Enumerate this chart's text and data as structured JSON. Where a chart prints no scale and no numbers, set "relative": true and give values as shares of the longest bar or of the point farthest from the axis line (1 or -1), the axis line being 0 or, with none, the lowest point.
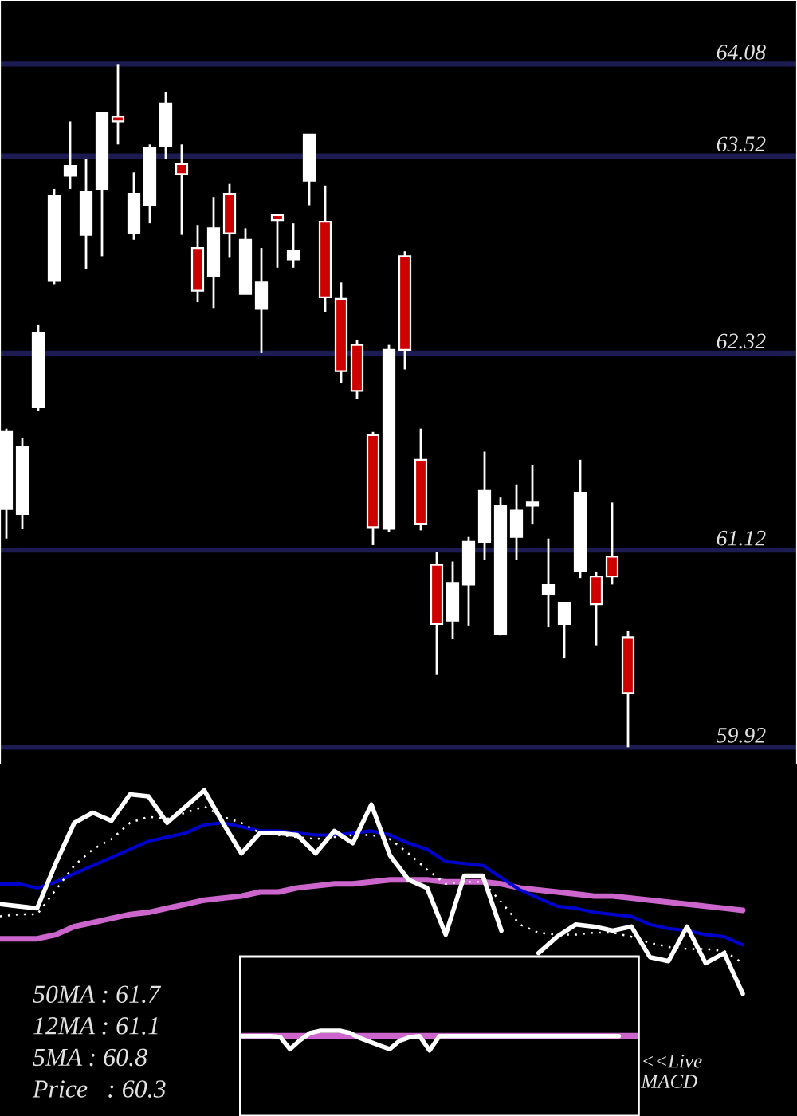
{
  "chart_data": [
    {
      "type": "candlestick",
      "categories": [
        null,
        null,
        null,
        null,
        null,
        null,
        null,
        null,
        null,
        null,
        null,
        null,
        null,
        null,
        null,
        null,
        null,
        null,
        null,
        null,
        null,
        null,
        null,
        null,
        null,
        null,
        null,
        null,
        null,
        null,
        null,
        null,
        null,
        null,
        null,
        null,
        null,
        null,
        null,
        null
      ],
      "ohlc": [
        [
          61.37,
          61.86,
          61.19,
          61.84
        ],
        [
          61.34,
          61.8,
          61.25,
          61.75
        ],
        [
          61.99,
          62.49,
          61.97,
          62.44
        ],
        [
          62.76,
          63.32,
          62.74,
          63.28
        ],
        [
          63.4,
          63.73,
          63.32,
          63.46
        ],
        [
          63.04,
          63.5,
          62.83,
          63.3
        ],
        [
          63.32,
          63.78,
          62.91,
          63.78
        ],
        [
          63.76,
          64.08,
          63.59,
          63.73
        ],
        [
          63.05,
          63.42,
          63.01,
          63.29
        ],
        [
          63.22,
          63.59,
          63.11,
          63.57
        ],
        [
          63.58,
          63.91,
          63.5,
          63.84
        ],
        [
          63.47,
          63.59,
          63.04,
          63.41
        ],
        [
          62.96,
          63.1,
          62.63,
          62.7
        ],
        [
          62.79,
          63.27,
          62.59,
          63.08
        ],
        [
          63.29,
          63.35,
          62.9,
          63.05
        ],
        [
          62.68,
          63.08,
          62.68,
          63.01
        ],
        [
          62.59,
          62.96,
          62.32,
          62.75
        ],
        [
          63.16,
          63.16,
          62.84,
          63.13
        ],
        [
          62.89,
          63.11,
          62.84,
          62.94
        ],
        [
          63.37,
          63.65,
          63.22,
          63.65
        ],
        [
          63.12,
          63.34,
          62.57,
          62.66
        ],
        [
          62.65,
          62.75,
          62.14,
          62.21
        ],
        [
          62.37,
          62.4,
          62.04,
          62.09
        ],
        [
          61.82,
          61.84,
          61.15,
          61.26
        ],
        [
          61.25,
          62.37,
          61.23,
          62.34
        ],
        [
          62.91,
          62.94,
          62.22,
          62.34
        ],
        [
          61.67,
          61.86,
          61.24,
          61.28
        ],
        [
          61.03,
          61.11,
          60.36,
          60.67
        ],
        [
          60.69,
          61.05,
          60.58,
          60.92
        ],
        [
          60.91,
          61.2,
          60.66,
          61.17
        ],
        [
          61.17,
          61.72,
          61.06,
          61.48
        ],
        [
          60.61,
          61.44,
          60.6,
          61.39
        ],
        [
          61.2,
          61.52,
          61.06,
          61.36
        ],
        [
          61.39,
          61.64,
          61.28,
          61.41
        ],
        [
          60.85,
          61.19,
          60.65,
          60.91
        ],
        [
          60.67,
          60.8,
          60.46,
          60.8
        ],
        [
          60.99,
          61.67,
          60.95,
          61.47
        ],
        [
          60.96,
          60.99,
          60.54,
          60.79
        ],
        [
          61.08,
          61.41,
          60.91,
          60.96
        ],
        [
          60.59,
          60.63,
          59.92,
          60.25
        ]
      ],
      "colors": [
        "#ffffff",
        "#ffffff",
        "#ffffff",
        "#ffffff",
        "#ffffff",
        "#ffffff",
        "#ffffff",
        "#cc0000",
        "#ffffff",
        "#ffffff",
        "#ffffff",
        "#cc0000",
        "#cc0000",
        "#ffffff",
        "#cc0000",
        "#ffffff",
        "#ffffff",
        "#cc0000",
        "#ffffff",
        "#ffffff",
        "#cc0000",
        "#cc0000",
        "#cc0000",
        "#cc0000",
        "#ffffff",
        "#cc0000",
        "#cc0000",
        "#cc0000",
        "#ffffff",
        "#ffffff",
        "#ffffff",
        "#ffffff",
        "#ffffff",
        "#ffffff",
        "#ffffff",
        "#ffffff",
        "#ffffff",
        "#cc0000",
        "#cc0000",
        "#cc0000"
      ],
      "ylim": [
        59.81,
        64.47
      ],
      "yticks": [
        59.92,
        61.12,
        62.32,
        63.52,
        64.08
      ],
      "grid": "y",
      "tick_labels": "y"
    },
    {
      "type": "line",
      "relative": true,
      "categories": [
        null,
        null,
        null,
        null,
        null,
        null,
        null,
        null,
        null,
        null,
        null,
        null,
        null,
        null,
        null,
        null,
        null,
        null,
        null,
        null,
        null,
        null,
        null,
        null,
        null,
        null,
        null,
        null,
        null,
        null,
        null,
        null,
        null,
        null,
        null,
        null,
        null,
        null,
        null,
        null,
        null
      ],
      "series": [
        {
          "color": "#cc66cc",
          "values": [
            0.27,
            0.27,
            0.27,
            0.29,
            0.33,
            0.35,
            0.37,
            0.39,
            0.4,
            0.42,
            0.44,
            0.46,
            0.47,
            0.48,
            0.5,
            0.5,
            0.52,
            0.53,
            0.54,
            0.54,
            0.55,
            0.56,
            0.56,
            0.56,
            0.55,
            0.55,
            0.55,
            0.54,
            0.52,
            0.51,
            0.5,
            0.49,
            0.48,
            0.48,
            0.47,
            0.46,
            0.45,
            0.44,
            0.43,
            0.42,
            0.41
          ]
        },
        {
          "color": "#0000cc",
          "values": [
            0.54,
            0.54,
            0.52,
            0.55,
            0.59,
            0.63,
            0.67,
            0.71,
            0.75,
            0.77,
            0.79,
            0.83,
            0.84,
            0.82,
            0.8,
            0.8,
            0.79,
            0.78,
            0.78,
            0.79,
            0.8,
            0.78,
            0.74,
            0.71,
            0.65,
            0.64,
            0.63,
            0.57,
            0.51,
            0.47,
            0.43,
            0.42,
            0.4,
            0.39,
            0.38,
            0.34,
            0.32,
            0.31,
            0.29,
            0.28,
            0.24
          ]
        },
        {
          "color": "#ffffff",
          "line_style": "dotted",
          "values": [
            0.38,
            0.39,
            0.39,
            0.51,
            0.63,
            0.71,
            0.76,
            0.84,
            0.87,
            0.86,
            0.89,
            0.92,
            0.87,
            0.84,
            0.79,
            0.78,
            0.77,
            0.76,
            0.77,
            0.78,
            0.78,
            0.76,
            0.69,
            0.61,
            0.54,
            0.55,
            0.55,
            0.45,
            0.34,
            0.3,
            0.29,
            0.29,
            0.3,
            0.3,
            0.28,
            0.25,
            0.23,
            0.22,
            0.22,
            0.21,
            0.15
          ]
        },
        {
          "color": "#ffffff",
          "values": [
            0.44,
            0.43,
            0.42,
            0.64,
            0.84,
            0.89,
            0.85,
            0.98,
            0.97,
            0.84,
            0.92,
            1,
            0.84,
            0.69,
            0.79,
            0.79,
            0.78,
            0.69,
            0.8,
            0.74,
            0.93,
            0.68,
            0.56,
            0.52,
            0.29,
            0.58,
            0.58,
            0.31,
            null,
            0.2,
            0.28,
            0.34,
            0.33,
            0.31,
            0.33,
            0.18,
            0.16,
            0.33,
            0.15,
            0.2,
            0
          ]
        }
      ],
      "annotations": [
        "50MA : 61.7",
        "12MA : 61.1",
        "5MA : 60.8",
        "Price   : 60.3"
      ]
    },
    {
      "type": "line",
      "relative": true,
      "categories": [
        null,
        null,
        null,
        null,
        null,
        null,
        null,
        null,
        null,
        null,
        null,
        null,
        null,
        null,
        null,
        null,
        null,
        null,
        null,
        null,
        null,
        null,
        null,
        null,
        null,
        null,
        null,
        null,
        null,
        null,
        null,
        null,
        null,
        null,
        null,
        null,
        null,
        null,
        null,
        null,
        null
      ],
      "series": [
        {
          "color": "#cc66cc",
          "values": [
            0.73,
            0.73,
            0.73,
            0.73,
            0.73,
            0.73,
            0.73,
            0.73,
            0.73,
            0.73,
            0.73,
            0.73,
            0.73,
            0.73,
            0.73,
            0.73,
            0.73,
            0.73,
            0.73,
            0.73,
            0.73,
            0.73,
            0.73,
            0.73,
            0.73,
            0.73,
            0.73,
            0.73,
            0.73,
            0.73,
            0.73,
            0.73,
            0.73,
            0.73,
            0.73,
            0.73,
            0.73,
            0.73,
            0.73,
            0.73,
            0.73
          ]
        },
        {
          "color": "#ffffff",
          "values": [
            0.73,
            0.73,
            0.73,
            0.73,
            0.69,
            0.06,
            0.52,
            0.88,
            1,
            1,
            1,
            0.89,
            0.63,
            0.44,
            0.25,
            0.07,
            0.49,
            0.67,
            0.73,
            0,
            0.73,
            0.73,
            0.73,
            0.73,
            0.73,
            0.73,
            0.73,
            0.73,
            0.73,
            0.73,
            0.73,
            0.73,
            0.73,
            0.73,
            0.73,
            0.73,
            0.73,
            0.73,
            0.73,
            null,
            null
          ]
        }
      ],
      "annotations": [
        "<<Live\nMACD"
      ]
    }
  ]
}
